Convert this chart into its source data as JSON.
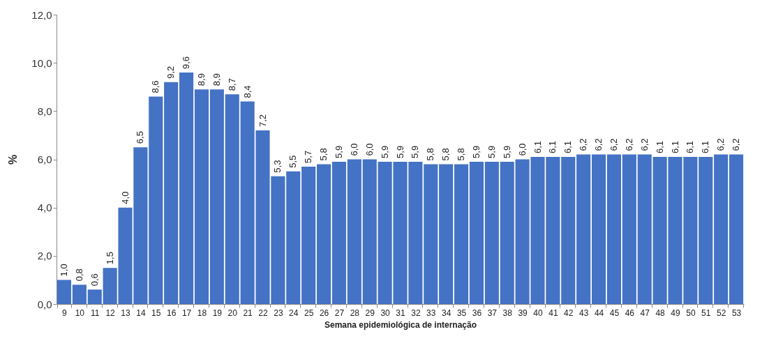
{
  "chart_data": {
    "type": "bar",
    "xlabel": "Semana epidemiológica  de internação",
    "ylabel": "%",
    "categories": [
      "9",
      "10",
      "11",
      "12",
      "13",
      "14",
      "15",
      "16",
      "17",
      "18",
      "19",
      "20",
      "21",
      "22",
      "23",
      "24",
      "25",
      "26",
      "27",
      "28",
      "29",
      "30",
      "31",
      "32",
      "33",
      "34",
      "35",
      "36",
      "37",
      "38",
      "39",
      "40",
      "41",
      "42",
      "43",
      "44",
      "45",
      "46",
      "47",
      "48",
      "49",
      "50",
      "51",
      "52",
      "53"
    ],
    "values": [
      1.0,
      0.8,
      0.6,
      1.5,
      4.0,
      6.5,
      8.6,
      9.2,
      9.6,
      8.9,
      8.9,
      8.7,
      8.4,
      7.2,
      5.3,
      5.5,
      5.7,
      5.8,
      5.9,
      6.0,
      6.0,
      5.9,
      5.9,
      5.9,
      5.8,
      5.8,
      5.8,
      5.9,
      5.9,
      5.9,
      6.0,
      6.1,
      6.1,
      6.1,
      6.2,
      6.2,
      6.2,
      6.2,
      6.2,
      6.1,
      6.1,
      6.1,
      6.1,
      6.2,
      6.2
    ],
    "value_labels": [
      "1,0",
      "0,8",
      "0,6",
      "1,5",
      "4,0",
      "6,5",
      "8,6",
      "9,2",
      "9,6",
      "8,9",
      "8,9",
      "8,7",
      "8,4",
      "7,2",
      "5,3",
      "5,5",
      "5,7",
      "5,8",
      "5,9",
      "6,0",
      "6,0",
      "5,9",
      "5,9",
      "5,9",
      "5,8",
      "5,8",
      "5,8",
      "5,9",
      "5,9",
      "5,9",
      "6,0",
      "6,1",
      "6,1",
      "6,1",
      "6,2",
      "6,2",
      "6,2",
      "6,2",
      "6,2",
      "6,1",
      "6,1",
      "6,1",
      "6,1",
      "6,2",
      "6,2"
    ],
    "color": "#4472c4",
    "ylim": [
      0,
      12
    ],
    "yticks": [
      {
        "value": 0,
        "label": "0,0"
      },
      {
        "value": 2,
        "label": "2,0"
      },
      {
        "value": 4,
        "label": "4,0"
      },
      {
        "value": 6,
        "label": "6,0"
      },
      {
        "value": 8,
        "label": "8,0"
      },
      {
        "value": 10,
        "label": "10,0"
      },
      {
        "value": 12,
        "label": "12,0"
      }
    ],
    "grid": false
  }
}
